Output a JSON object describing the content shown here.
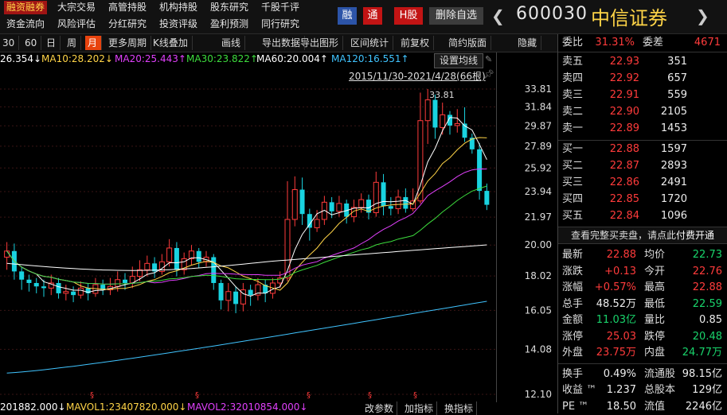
{
  "nav": {
    "row1": [
      "融资融券",
      "大宗交易",
      "高管持股",
      "机构持股",
      "股东研究",
      "千股千评"
    ],
    "row2": [
      "资金流向",
      "风险评估",
      "分红研究",
      "投资评级",
      "盈利预测",
      "同行研究"
    ],
    "active": "融资融券"
  },
  "header": {
    "btn_rong": "融",
    "btn_tong": "通",
    "btn_hgu": "H股",
    "btn_del": "删除自选",
    "prev": "❮",
    "next": "❯",
    "code": "600030",
    "name": "中信证券"
  },
  "toolbar": [
    "30",
    "60",
    "日",
    "周",
    "月",
    "更多周期",
    "K线叠加",
    "画线",
    "导出数据",
    "导出图形",
    "区间统计",
    "前复权",
    "简约版面",
    "隐藏"
  ],
  "toolbar_active": "月",
  "ma_legend": [
    {
      "text": "26.354↓",
      "color": "#ffffff"
    },
    {
      "text": "MA10:28.202↓",
      "color": "#ffd447"
    },
    {
      "text": "MA20:25.443↑",
      "color": "#e040fb"
    },
    {
      "text": "MA30:23.822↑",
      "color": "#3ddc3d"
    },
    {
      "text": "MA60:20.004↑",
      "color": "#ffffff"
    },
    {
      "text": "MA120:16.551↑",
      "color": "#40c4ff"
    }
  ],
  "set_ma": "设置均线",
  "date_range": "2015/11/30-2021/4/28(66根)",
  "max_label": "33.81",
  "price_ticks": [
    "33.81",
    "31.84",
    "29.87",
    "27.89",
    "25.92",
    "23.94",
    "21.97",
    "20.00",
    "18.02",
    "16.05",
    "14.08",
    "12.10"
  ],
  "bottom": {
    "vol": "201882.000↓",
    "mavol1": "MAVOL1:23407820.000↓",
    "mavol2": "MAVOL2:32010854.000↓",
    "btns": [
      "改参数",
      "加指标",
      "换指标"
    ]
  },
  "colors": {
    "up": "#ff3b3b",
    "down": "#19d3e0",
    "bg": "#000000"
  },
  "chart_data": {
    "type": "candlestick",
    "ylim": [
      12.1,
      33.81
    ],
    "y_scale": "log",
    "candles": [
      [
        19.2,
        19.6,
        20.2,
        18.4
      ],
      [
        19.6,
        18.3,
        20.1,
        17.8
      ],
      [
        18.3,
        17.8,
        18.6,
        17.2
      ],
      [
        17.8,
        17.6,
        18.1,
        17.1
      ],
      [
        17.6,
        17.4,
        17.9,
        17.0
      ],
      [
        17.4,
        17.3,
        17.8,
        16.8
      ],
      [
        17.3,
        17.6,
        18.1,
        16.9
      ],
      [
        17.6,
        17.0,
        17.9,
        16.7
      ],
      [
        17.0,
        17.1,
        17.5,
        16.6
      ],
      [
        17.1,
        16.9,
        17.4,
        16.5
      ],
      [
        16.9,
        17.3,
        17.7,
        16.7
      ],
      [
        17.3,
        17.0,
        17.6,
        16.6
      ],
      [
        17.0,
        17.5,
        17.9,
        16.8
      ],
      [
        17.5,
        17.2,
        17.8,
        16.9
      ],
      [
        17.2,
        17.4,
        17.9,
        16.9
      ],
      [
        17.4,
        17.8,
        18.3,
        17.1
      ],
      [
        17.8,
        17.6,
        18.2,
        17.2
      ],
      [
        17.6,
        18.0,
        18.6,
        17.3
      ],
      [
        18.0,
        18.4,
        19.0,
        17.7
      ],
      [
        18.4,
        18.8,
        19.3,
        18.0
      ],
      [
        18.8,
        18.3,
        19.2,
        17.9
      ],
      [
        18.3,
        18.9,
        19.4,
        18.1
      ],
      [
        18.9,
        19.8,
        20.4,
        18.6
      ],
      [
        19.8,
        18.4,
        20.2,
        18.0
      ],
      [
        18.4,
        19.1,
        19.5,
        18.1
      ],
      [
        19.1,
        19.6,
        20.0,
        18.7
      ],
      [
        19.6,
        18.9,
        19.8,
        18.5
      ],
      [
        18.9,
        19.2,
        19.6,
        18.6
      ],
      [
        19.2,
        17.6,
        19.4,
        17.2
      ],
      [
        17.6,
        16.6,
        17.8,
        16.1
      ],
      [
        16.6,
        17.1,
        17.6,
        16.0
      ],
      [
        17.1,
        16.4,
        17.4,
        15.9
      ],
      [
        16.4,
        17.2,
        17.6,
        16.0
      ],
      [
        17.2,
        16.9,
        17.5,
        16.3
      ],
      [
        16.9,
        17.5,
        17.9,
        16.6
      ],
      [
        17.5,
        17.0,
        17.8,
        16.5
      ],
      [
        17.0,
        17.6,
        17.9,
        16.7
      ],
      [
        17.6,
        17.9,
        18.3,
        17.3
      ],
      [
        17.9,
        21.8,
        24.8,
        17.7
      ],
      [
        21.8,
        24.1,
        25.2,
        21.3
      ],
      [
        24.1,
        22.2,
        25.1,
        21.4
      ],
      [
        22.2,
        21.2,
        22.6,
        20.3
      ],
      [
        21.2,
        21.8,
        22.5,
        20.9
      ],
      [
        21.8,
        23.1,
        23.6,
        21.4
      ],
      [
        23.1,
        22.4,
        23.5,
        21.9
      ],
      [
        22.4,
        23.0,
        23.6,
        22.0
      ],
      [
        23.0,
        22.0,
        23.3,
        21.5
      ],
      [
        22.0,
        22.7,
        23.3,
        21.6
      ],
      [
        22.7,
        23.3,
        23.8,
        22.3
      ],
      [
        23.3,
        22.3,
        23.7,
        21.8
      ],
      [
        22.3,
        24.7,
        25.6,
        22.0
      ],
      [
        24.7,
        22.8,
        25.4,
        22.1
      ],
      [
        22.8,
        22.6,
        23.5,
        22.1
      ],
      [
        22.6,
        23.5,
        24.1,
        22.2
      ],
      [
        23.5,
        22.6,
        24.2,
        22.3
      ],
      [
        22.6,
        23.2,
        24.2,
        22.4
      ],
      [
        23.2,
        30.4,
        33.4,
        23.0
      ],
      [
        30.4,
        32.6,
        33.81,
        28.1
      ],
      [
        32.6,
        29.7,
        33.2,
        28.6
      ],
      [
        29.7,
        31.0,
        32.3,
        29.0
      ],
      [
        31.0,
        29.9,
        31.4,
        29.0
      ],
      [
        29.9,
        30.1,
        31.6,
        29.2
      ],
      [
        30.1,
        28.7,
        31.8,
        28.3
      ],
      [
        28.7,
        27.6,
        29.1,
        27.2
      ],
      [
        27.6,
        24.0,
        28.2,
        23.3
      ],
      [
        24.0,
        22.9,
        24.6,
        22.5
      ]
    ]
  },
  "orderbook": {
    "weibi_lbl": "委比",
    "weibi_val": "31.31%",
    "weicha_lbl": "委差",
    "weicha_val": "4671",
    "sell": [
      {
        "lbl": "卖五",
        "price": "22.93",
        "vol": "351"
      },
      {
        "lbl": "卖四",
        "price": "22.92",
        "vol": "657"
      },
      {
        "lbl": "卖三",
        "price": "22.91",
        "vol": "559"
      },
      {
        "lbl": "卖二",
        "price": "22.90",
        "vol": "2105"
      },
      {
        "lbl": "卖一",
        "price": "22.89",
        "vol": "1453"
      }
    ],
    "buy": [
      {
        "lbl": "买一",
        "price": "22.88",
        "vol": "1597"
      },
      {
        "lbl": "买二",
        "price": "22.87",
        "vol": "2893"
      },
      {
        "lbl": "买三",
        "price": "22.86",
        "vol": "2491"
      },
      {
        "lbl": "买四",
        "price": "22.85",
        "vol": "1720"
      },
      {
        "lbl": "买五",
        "price": "22.84",
        "vol": "1096"
      }
    ],
    "notice_text": "查看完整买卖盘，请点此",
    "notice_link": "付费开通"
  },
  "stats": [
    {
      "l1": "最新",
      "v1": "22.88",
      "c1": "red",
      "l2": "均价",
      "v2": "22.73",
      "c2": "green"
    },
    {
      "l1": "涨跌",
      "v1": "+0.13",
      "c1": "red",
      "l2": "今开",
      "v2": "22.76",
      "c2": "red"
    },
    {
      "l1": "涨幅",
      "v1": "+0.57%",
      "c1": "red",
      "l2": "最高",
      "v2": "22.88",
      "c2": "red"
    },
    {
      "l1": "总手",
      "v1": "48.52万",
      "c1": "white",
      "l2": "最低",
      "v2": "22.59",
      "c2": "green"
    },
    {
      "l1": "金额",
      "v1": "11.03亿",
      "c1": "green",
      "l2": "量比",
      "v2": "0.85",
      "c2": "white"
    },
    {
      "l1": "涨停",
      "v1": "25.03",
      "c1": "red",
      "l2": "跌停",
      "v2": "20.48",
      "c2": "green"
    },
    {
      "l1": "外盘",
      "v1": "23.75万",
      "c1": "red",
      "l2": "内盘",
      "v2": "24.77万",
      "c2": "green"
    },
    {
      "l1": "换手",
      "v1": "0.49%",
      "c1": "white",
      "l2": "流通股",
      "v2": "98.15亿",
      "c2": "white"
    },
    {
      "l1": "收益 ™",
      "v1": "1.237",
      "c1": "white",
      "l2": "总股本",
      "v2": "129亿",
      "c2": "white"
    },
    {
      "l1": "PE ™",
      "v1": "18.50",
      "c1": "white",
      "l2": "流值",
      "v2": "2246亿",
      "c2": "white"
    }
  ]
}
